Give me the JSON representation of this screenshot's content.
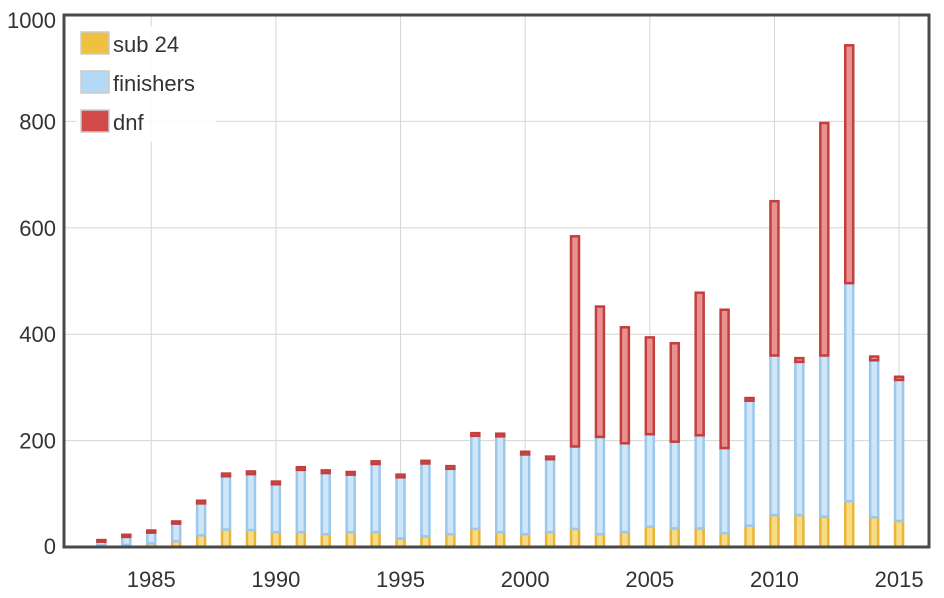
{
  "chart_data": {
    "type": "bar",
    "stacked": true,
    "xlabel": "",
    "ylabel": "",
    "xlim": [
      1981.5,
      2016.2
    ],
    "ylim": [
      0,
      1000
    ],
    "x_ticks": [
      1985,
      1990,
      1995,
      2000,
      2005,
      2010,
      2015
    ],
    "y_ticks": [
      0,
      200,
      400,
      600,
      800,
      1000
    ],
    "grid": true,
    "legend_position": "top-left",
    "x": [
      1983,
      1984,
      1985,
      1986,
      1987,
      1988,
      1989,
      1990,
      1991,
      1992,
      1993,
      1994,
      1995,
      1996,
      1997,
      1998,
      1999,
      2000,
      2001,
      2002,
      2003,
      2004,
      2005,
      2006,
      2007,
      2008,
      2009,
      2010,
      2011,
      2012,
      2013,
      2014,
      2015
    ],
    "series": [
      {
        "name": "sub 24",
        "color": "#f0c040",
        "values": [
          3,
          4,
          7,
          11,
          22,
          33,
          32,
          28,
          28,
          24,
          28,
          28,
          16,
          20,
          24,
          34,
          28,
          24,
          28,
          34,
          24,
          28,
          38,
          35,
          35,
          26,
          40,
          60,
          60,
          57,
          86,
          56,
          49
        ]
      },
      {
        "name": "finishers",
        "color": "#b3d9f5",
        "values": [
          7,
          15,
          20,
          33,
          60,
          100,
          105,
          90,
          117,
          115,
          108,
          128,
          115,
          137,
          123,
          175,
          180,
          150,
          137,
          155,
          183,
          167,
          174,
          163,
          175,
          160,
          235,
          300,
          288,
          303,
          410,
          295,
          265
        ]
      },
      {
        "name": "dnf",
        "color": "#d24a4a",
        "values": [
          3,
          4,
          4,
          4,
          5,
          5,
          5,
          5,
          5,
          5,
          5,
          5,
          5,
          5,
          5,
          5,
          5,
          5,
          5,
          395,
          245,
          218,
          182,
          185,
          268,
          260,
          5,
          290,
          7,
          437,
          447,
          7,
          6
        ]
      }
    ]
  }
}
